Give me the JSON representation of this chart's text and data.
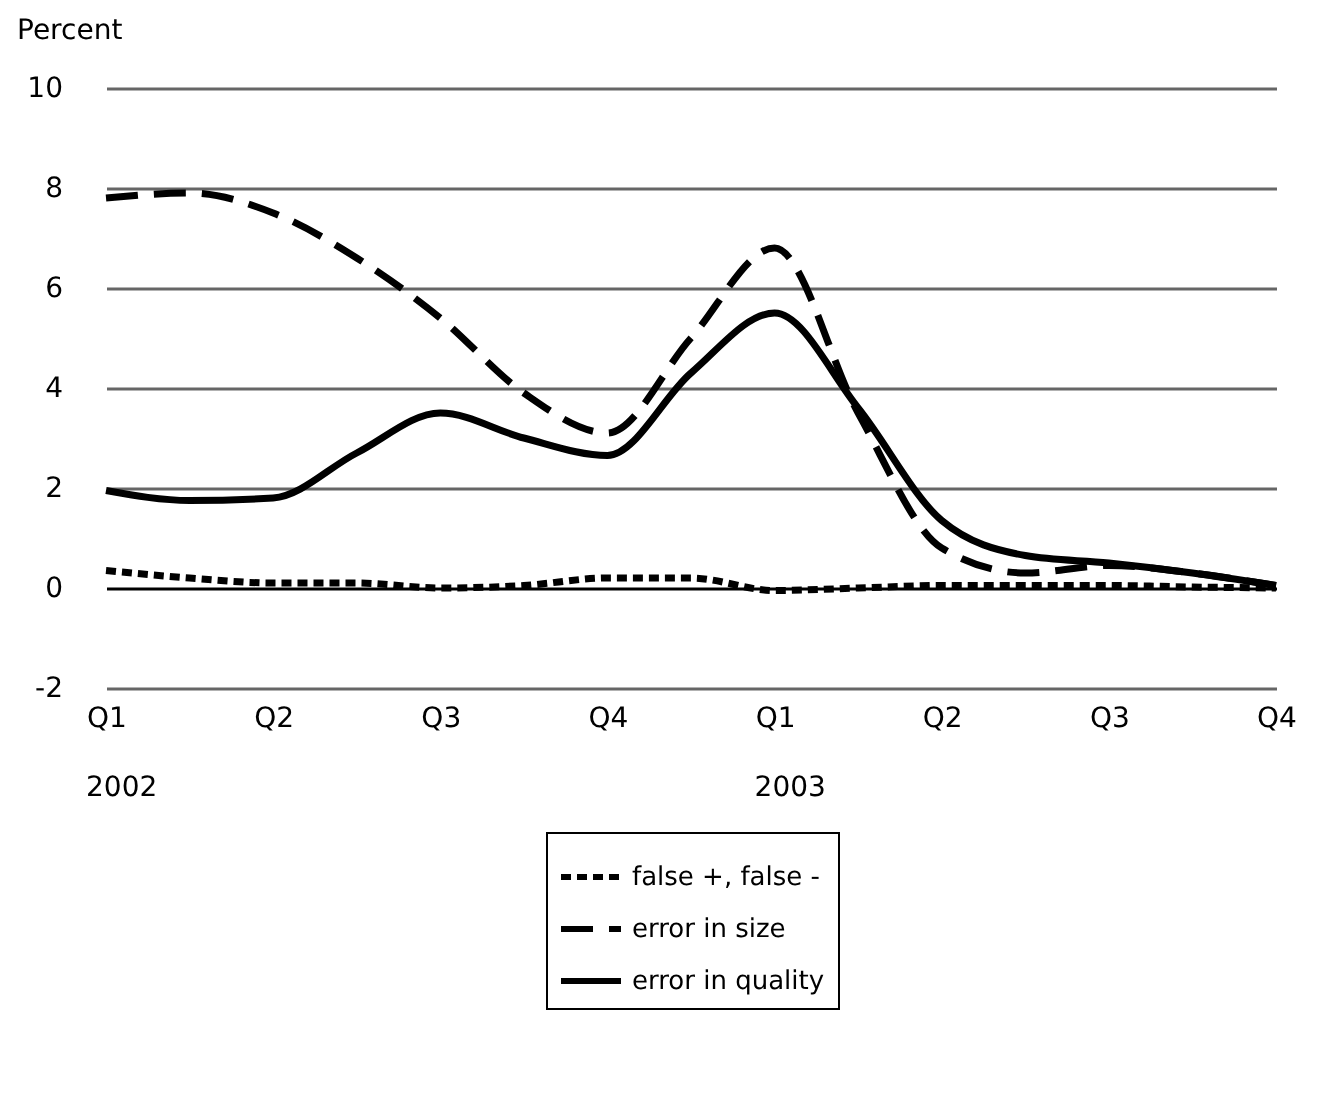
{
  "chart_data": {
    "type": "line",
    "ylabel": "Percent",
    "categories": [
      "Q1",
      null,
      "Q2",
      null,
      "Q3",
      null,
      "Q4",
      null,
      "Q1",
      null,
      "Q2",
      null,
      "Q3",
      null,
      "Q4"
    ],
    "annotations": [
      "2002",
      "2003"
    ],
    "ylim": [
      -2,
      10
    ],
    "yticks": [
      -2,
      0,
      2,
      4,
      6,
      8,
      10
    ],
    "grid": "y",
    "legend": "bottom",
    "series": [
      {
        "name": "false +, false -",
        "color": "#000000",
        "line_style": "dotted",
        "values": [
          0.35,
          0.2,
          0.1,
          0.1,
          0.0,
          0.05,
          0.2,
          0.2,
          -0.05,
          0.0,
          0.05,
          0.05,
          0.05,
          0.02,
          0.0
        ]
      },
      {
        "name": "error in size",
        "color": "#000000",
        "line_style": "dashed",
        "values": [
          7.8,
          7.9,
          7.5,
          6.6,
          5.4,
          3.9,
          3.1,
          5.0,
          6.8,
          3.5,
          0.8,
          0.3,
          0.45,
          0.3,
          0.05
        ]
      },
      {
        "name": "error in quality",
        "color": "#000000",
        "line_style": "solid",
        "values": [
          1.95,
          1.75,
          1.8,
          2.7,
          3.5,
          3.0,
          2.65,
          4.3,
          5.5,
          3.6,
          1.35,
          0.65,
          0.5,
          0.3,
          0.05
        ]
      }
    ]
  }
}
